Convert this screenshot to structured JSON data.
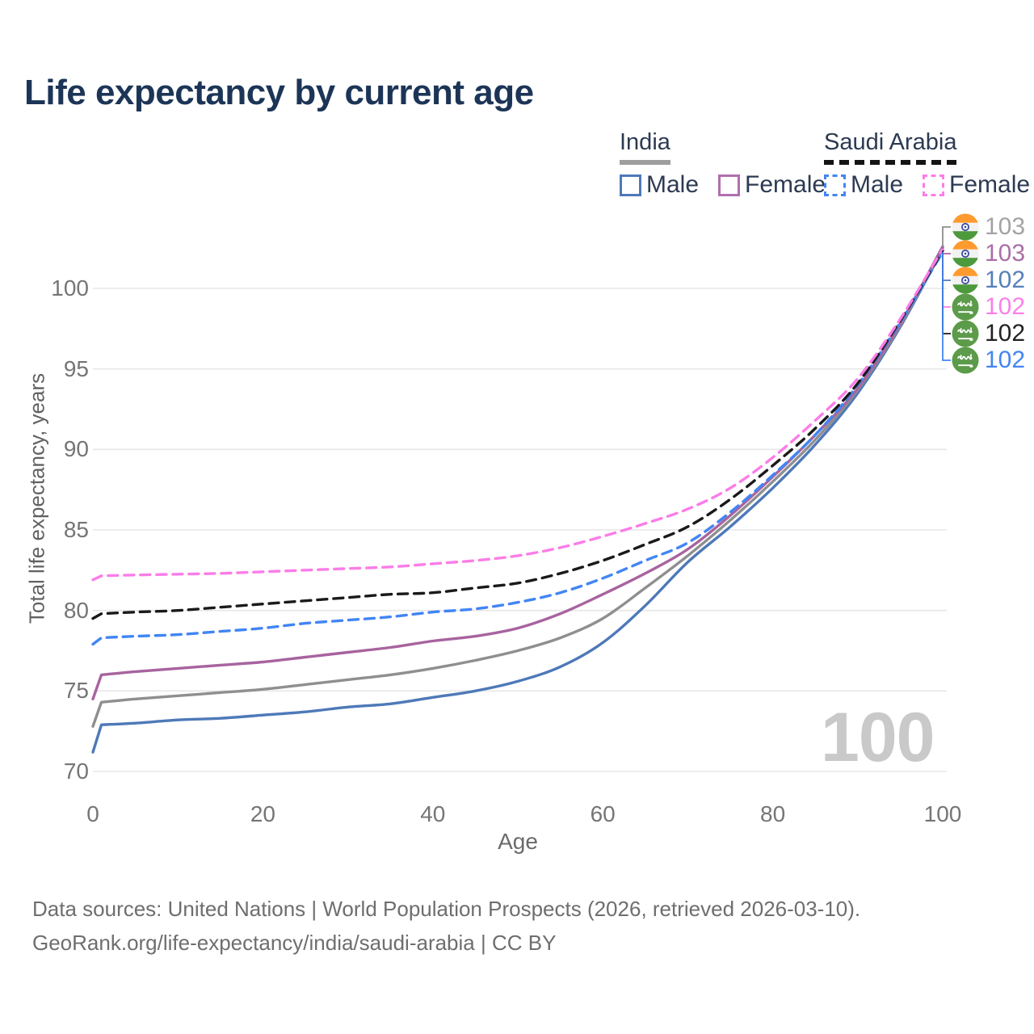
{
  "title": "Life expectancy by current age",
  "legend": {
    "groups": [
      {
        "label": "India",
        "line_style": "solid",
        "underline_color": "#9e9e9e",
        "items": [
          {
            "label": "Male",
            "color": "#4e79b8",
            "dash": false
          },
          {
            "label": "Female",
            "color": "#b06fae",
            "dash": false
          }
        ]
      },
      {
        "label": "Saudi Arabia",
        "line_style": "dashed",
        "underline_color": "#141414",
        "items": [
          {
            "label": "Male",
            "color": "#4285f4",
            "dash": true
          },
          {
            "label": "Female",
            "color": "#fb7de8",
            "dash": true
          }
        ]
      }
    ]
  },
  "chart_data": {
    "type": "line",
    "title": "Life expectancy by current age",
    "xlabel": "Age",
    "ylabel": "Total life expectancy, years",
    "xlim": [
      0,
      100
    ],
    "ylim": [
      70,
      103
    ],
    "x_ticks": [
      "0",
      "20",
      "40",
      "60",
      "80",
      "100"
    ],
    "x_tick_values": [
      0,
      20,
      40,
      60,
      80,
      100
    ],
    "y_ticks": [
      "70",
      "75",
      "80",
      "85",
      "90",
      "95",
      "100"
    ],
    "y_tick_values": [
      70,
      75,
      80,
      85,
      90,
      95,
      100
    ],
    "grid": "horizontal-only",
    "legend_position": "top-right",
    "frame_label": "100",
    "ages": [
      0,
      1,
      5,
      10,
      15,
      20,
      25,
      30,
      35,
      40,
      45,
      50,
      55,
      60,
      65,
      70,
      75,
      80,
      85,
      90,
      95,
      100
    ],
    "series": [
      {
        "name": "India Male",
        "country": "India",
        "sex": "Male",
        "flag": "india-flag-icon",
        "color": "#4e79b8",
        "dash": false,
        "label_row": 2,
        "end_label": "102",
        "end_label_color": "#5580ba",
        "values": [
          71.2,
          72.9,
          73.0,
          73.2,
          73.3,
          73.5,
          73.7,
          74.0,
          74.2,
          74.6,
          75.0,
          75.6,
          76.5,
          78.0,
          80.3,
          83.0,
          85.2,
          87.6,
          90.3,
          93.5,
          97.6,
          102.45
        ]
      },
      {
        "name": "India Total",
        "country": "India",
        "sex": "Both",
        "flag": "india-flag-icon",
        "color": "#8f8f8f",
        "dash": false,
        "label_row": 0,
        "end_label": "103",
        "end_label_color": "#a3a3a3",
        "values": [
          72.8,
          74.3,
          74.5,
          74.7,
          74.9,
          75.1,
          75.4,
          75.7,
          76.0,
          76.4,
          76.9,
          77.5,
          78.3,
          79.5,
          81.4,
          83.4,
          85.6,
          88.0,
          90.6,
          93.7,
          97.7,
          102.55
        ]
      },
      {
        "name": "India Female",
        "country": "India",
        "sex": "Female",
        "flag": "india-flag-icon",
        "color": "#a8639f",
        "dash": false,
        "label_row": 1,
        "end_label": "103",
        "end_label_color": "#a96fa8",
        "values": [
          74.5,
          76.0,
          76.2,
          76.4,
          76.6,
          76.8,
          77.1,
          77.4,
          77.7,
          78.1,
          78.4,
          78.9,
          79.8,
          81.0,
          82.3,
          83.8,
          85.9,
          88.3,
          90.9,
          93.8,
          97.8,
          102.6
        ]
      },
      {
        "name": "Saudi Arabia Male",
        "country": "Saudi Arabia",
        "sex": "Male",
        "flag": "saudi-arabia-flag-icon",
        "color": "#4285f4",
        "dash": true,
        "label_row": 5,
        "end_label": "102",
        "end_label_color": "#4285f4",
        "values": [
          77.9,
          78.3,
          78.4,
          78.5,
          78.7,
          78.9,
          79.2,
          79.4,
          79.6,
          79.9,
          80.1,
          80.5,
          81.1,
          82.0,
          83.1,
          84.2,
          86.1,
          88.4,
          90.9,
          94.0,
          97.9,
          102.25
        ]
      },
      {
        "name": "Saudi Arabia Total",
        "country": "Saudi Arabia",
        "sex": "Both",
        "flag": "saudi-arabia-flag-icon",
        "color": "#1a1a1a",
        "dash": true,
        "label_row": 4,
        "end_label": "102",
        "end_label_color": "#222222",
        "values": [
          79.5,
          79.8,
          79.9,
          80.0,
          80.2,
          80.4,
          80.6,
          80.8,
          81.0,
          81.1,
          81.4,
          81.7,
          82.3,
          83.1,
          84.1,
          85.2,
          86.9,
          89.0,
          91.3,
          94.1,
          98.0,
          102.35
        ]
      },
      {
        "name": "Saudi Arabia Female",
        "country": "Saudi Arabia",
        "sex": "Female",
        "flag": "saudi-arabia-flag-icon",
        "color": "#fb7de8",
        "dash": true,
        "label_row": 3,
        "end_label": "102",
        "end_label_color": "#fb80e8",
        "values": [
          81.9,
          82.15,
          82.2,
          82.25,
          82.3,
          82.4,
          82.5,
          82.6,
          82.7,
          82.9,
          83.1,
          83.4,
          83.9,
          84.6,
          85.4,
          86.3,
          87.6,
          89.5,
          91.8,
          94.4,
          98.1,
          102.45
        ]
      }
    ]
  },
  "footer": {
    "line1": "Data sources: United Nations | World Population Prospects (2026, retrieved 2026-03-10).",
    "line2": "GeoRank.org/life-expectancy/india/saudi-arabia | CC BY"
  }
}
